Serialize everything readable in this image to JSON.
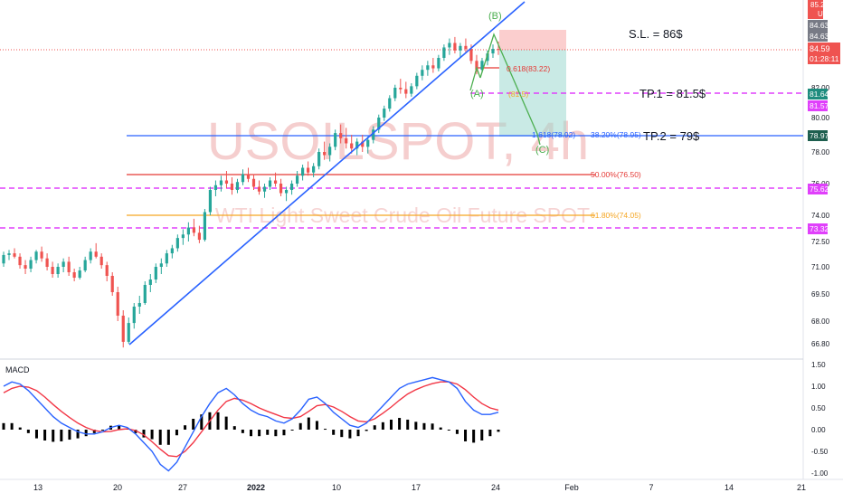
{
  "watermark": {
    "symbol": "USOILSPOT, 4h",
    "description": "WTI Light Sweet Crude Oil Future SPOT"
  },
  "currency": "USD",
  "annotations": {
    "stop_loss": "S.L. = 86$",
    "tp1": "TP.1 = 81.5$",
    "tp2": "TP.2 = 79$",
    "wave_a": "(A)",
    "wave_b": "(B)",
    "wave_c": "(C)",
    "fib_618_small": "0.618(83.22)",
    "fib_618_ext": "1.618(78.92)",
    "fib_382": "38.20%(78.95)",
    "fib_500": "50.00%(76.50)",
    "fib_618": "61.80%(74.05)",
    "fib_a_level": "(81.5)"
  },
  "price_badges": {
    "top1": "85.24",
    "top2": "84.63",
    "top3": "84.63",
    "last": "84.59",
    "countdown": "01:28:11",
    "tp1_a": "81.64",
    "tp1_b": "81.57",
    "tp2": "78.97",
    "lvl1": "75.62",
    "lvl2": "73.32"
  },
  "colors": {
    "up": "#26a69a",
    "down": "#ef5350",
    "trend": "#2962ff",
    "magenta": "#e040fb",
    "red_line": "#e53935",
    "orange_line": "#f5a623",
    "macd": "#2962ff",
    "signal": "#f23645",
    "hist": "#000000"
  },
  "chart_data": {
    "type": "candlestick",
    "title": "USOILSPOT, 4h",
    "y_axis_ticks": [
      66.8,
      68.0,
      69.5,
      71.0,
      72.5,
      74.0,
      76.0,
      78.0,
      80.0,
      82.0
    ],
    "y_axis_tick_labels": [
      "66.80",
      "68.00",
      "69.50",
      "71.00",
      "72.50",
      "74.00",
      "76.00",
      "78.00",
      "80.00",
      "82.00"
    ],
    "x_axis_labels": [
      "13",
      "20",
      "27",
      "2022",
      "10",
      "17",
      "24",
      "Feb",
      "7",
      "14",
      "21"
    ],
    "levels": {
      "stop_loss": 86,
      "tp1": 81.5,
      "tp2": 79,
      "fib_382": 78.95,
      "fib_500": 76.5,
      "fib_618": 74.05,
      "magenta_1": 81.5,
      "magenta_2": 75.62,
      "magenta_3": 73.32
    },
    "ohlc": [
      [
        71.2,
        71.9,
        71.0,
        71.7
      ],
      [
        71.7,
        72.0,
        71.4,
        71.8
      ],
      [
        71.8,
        72.1,
        71.5,
        71.6
      ],
      [
        71.6,
        71.8,
        70.9,
        71.1
      ],
      [
        71.1,
        71.4,
        70.6,
        70.9
      ],
      [
        70.9,
        71.6,
        70.7,
        71.4
      ],
      [
        71.4,
        72.0,
        71.2,
        71.9
      ],
      [
        71.9,
        72.2,
        71.3,
        71.5
      ],
      [
        71.5,
        71.8,
        70.8,
        71.0
      ],
      [
        71.0,
        71.3,
        70.4,
        70.6
      ],
      [
        70.6,
        71.2,
        70.4,
        71.0
      ],
      [
        71.0,
        71.5,
        70.7,
        71.3
      ],
      [
        71.3,
        71.6,
        70.5,
        70.7
      ],
      [
        70.7,
        70.9,
        70.2,
        70.4
      ],
      [
        70.4,
        71.0,
        70.3,
        70.8
      ],
      [
        70.8,
        71.6,
        70.7,
        71.4
      ],
      [
        71.4,
        72.1,
        71.2,
        71.9
      ],
      [
        71.9,
        72.4,
        71.5,
        71.6
      ],
      [
        71.6,
        71.8,
        70.9,
        71.1
      ],
      [
        71.1,
        71.3,
        70.2,
        70.5
      ],
      [
        70.5,
        70.7,
        69.4,
        69.6
      ],
      [
        69.6,
        69.9,
        68.0,
        68.3
      ],
      [
        68.3,
        68.6,
        66.6,
        66.9
      ],
      [
        66.9,
        68.2,
        66.8,
        67.9
      ],
      [
        67.9,
        69.0,
        67.6,
        68.8
      ],
      [
        68.8,
        69.4,
        68.4,
        69.0
      ],
      [
        69.0,
        70.2,
        68.9,
        70.0
      ],
      [
        70.0,
        70.6,
        69.6,
        70.3
      ],
      [
        70.3,
        71.2,
        70.1,
        71.0
      ],
      [
        71.0,
        71.5,
        70.6,
        71.2
      ],
      [
        71.2,
        72.0,
        71.0,
        71.8
      ],
      [
        71.8,
        72.3,
        71.5,
        72.1
      ],
      [
        72.1,
        72.9,
        71.9,
        72.7
      ],
      [
        72.7,
        73.2,
        72.3,
        72.9
      ],
      [
        72.9,
        73.6,
        72.5,
        73.3
      ],
      [
        73.3,
        73.8,
        72.8,
        73.0
      ],
      [
        73.0,
        73.4,
        72.4,
        72.6
      ],
      [
        72.6,
        74.4,
        72.5,
        74.2
      ],
      [
        74.2,
        75.8,
        74.0,
        75.6
      ],
      [
        75.6,
        76.2,
        75.2,
        75.9
      ],
      [
        75.9,
        76.5,
        75.5,
        76.2
      ],
      [
        76.2,
        76.8,
        75.7,
        76.0
      ],
      [
        76.0,
        76.4,
        75.3,
        75.6
      ],
      [
        75.6,
        76.3,
        75.4,
        76.1
      ],
      [
        76.1,
        76.9,
        75.9,
        76.6
      ],
      [
        76.6,
        77.0,
        76.1,
        76.3
      ],
      [
        76.3,
        76.6,
        75.6,
        75.8
      ],
      [
        75.8,
        76.2,
        75.3,
        75.5
      ],
      [
        75.5,
        76.0,
        75.1,
        75.8
      ],
      [
        75.8,
        76.4,
        75.6,
        76.2
      ],
      [
        76.2,
        76.7,
        75.8,
        76.0
      ],
      [
        76.0,
        76.3,
        75.2,
        75.4
      ],
      [
        75.4,
        75.8,
        74.9,
        75.6
      ],
      [
        75.6,
        76.2,
        75.3,
        76.0
      ],
      [
        76.0,
        76.8,
        75.8,
        76.5
      ],
      [
        76.5,
        77.2,
        76.2,
        77.0
      ],
      [
        77.0,
        77.4,
        76.5,
        76.7
      ],
      [
        76.7,
        77.3,
        76.4,
        77.1
      ],
      [
        77.1,
        78.2,
        76.9,
        78.0
      ],
      [
        78.0,
        78.6,
        77.5,
        77.8
      ],
      [
        77.8,
        78.5,
        77.4,
        78.3
      ],
      [
        78.3,
        79.3,
        78.1,
        79.1
      ],
      [
        79.1,
        79.6,
        78.5,
        78.8
      ],
      [
        78.8,
        79.4,
        78.2,
        78.5
      ],
      [
        78.5,
        79.0,
        77.9,
        78.2
      ],
      [
        78.2,
        78.8,
        77.8,
        78.6
      ],
      [
        78.6,
        79.0,
        78.0,
        78.3
      ],
      [
        78.3,
        78.9,
        77.9,
        78.7
      ],
      [
        78.7,
        79.5,
        78.5,
        79.3
      ],
      [
        79.3,
        80.2,
        79.1,
        80.0
      ],
      [
        80.0,
        80.8,
        79.8,
        80.6
      ],
      [
        80.6,
        81.5,
        80.4,
        81.3
      ],
      [
        81.3,
        82.2,
        81.1,
        82.0
      ],
      [
        82.0,
        82.6,
        81.6,
        81.9
      ],
      [
        81.9,
        82.4,
        81.3,
        81.6
      ],
      [
        81.6,
        82.3,
        81.4,
        82.1
      ],
      [
        82.1,
        83.0,
        81.9,
        82.8
      ],
      [
        82.8,
        83.5,
        82.5,
        83.2
      ],
      [
        83.2,
        83.8,
        82.8,
        83.5
      ],
      [
        83.5,
        84.0,
        83.0,
        83.3
      ],
      [
        83.3,
        84.2,
        83.1,
        84.0
      ],
      [
        84.0,
        84.9,
        83.8,
        84.7
      ],
      [
        84.7,
        85.3,
        84.2,
        85.0
      ],
      [
        85.0,
        85.4,
        84.3,
        84.5
      ],
      [
        84.5,
        85.0,
        84.0,
        84.8
      ],
      [
        84.8,
        85.3,
        84.3,
        84.6
      ],
      [
        84.6,
        84.9,
        83.6,
        83.8
      ],
      [
        83.8,
        84.2,
        82.9,
        83.2
      ],
      [
        83.2,
        84.0,
        83.0,
        83.8
      ],
      [
        83.8,
        84.5,
        83.5,
        84.3
      ],
      [
        84.3,
        84.9,
        84.0,
        84.6
      ],
      [
        84.6,
        85.1,
        84.2,
        84.59
      ]
    ]
  },
  "macd": {
    "label": "MACD",
    "ticks": [
      1.5,
      1.0,
      0.5,
      0.0,
      -0.5,
      -1.0
    ],
    "tick_labels": [
      "1.50",
      "1.00",
      "0.50",
      "0.00",
      "-0.50",
      "-1.00"
    ],
    "macd_line": [
      1.0,
      1.1,
      1.05,
      0.9,
      0.7,
      0.5,
      0.3,
      0.15,
      0.05,
      -0.05,
      -0.1,
      -0.1,
      -0.05,
      0.05,
      0.1,
      0.05,
      -0.1,
      -0.3,
      -0.5,
      -0.8,
      -0.95,
      -0.75,
      -0.4,
      -0.05,
      0.3,
      0.6,
      0.85,
      0.95,
      0.8,
      0.6,
      0.45,
      0.35,
      0.3,
      0.2,
      0.15,
      0.25,
      0.45,
      0.7,
      0.75,
      0.6,
      0.4,
      0.25,
      0.1,
      0.05,
      0.15,
      0.35,
      0.55,
      0.75,
      0.95,
      1.05,
      1.1,
      1.15,
      1.2,
      1.15,
      1.1,
      0.95,
      0.65,
      0.45,
      0.35,
      0.35,
      0.4
    ],
    "signal_line": [
      0.85,
      0.95,
      1.0,
      0.98,
      0.9,
      0.75,
      0.58,
      0.42,
      0.28,
      0.15,
      0.05,
      -0.02,
      -0.05,
      -0.04,
      0.0,
      0.02,
      -0.02,
      -0.12,
      -0.28,
      -0.45,
      -0.6,
      -0.62,
      -0.5,
      -0.3,
      -0.05,
      0.2,
      0.45,
      0.65,
      0.72,
      0.68,
      0.6,
      0.5,
      0.42,
      0.35,
      0.28,
      0.26,
      0.3,
      0.42,
      0.55,
      0.58,
      0.52,
      0.42,
      0.3,
      0.2,
      0.18,
      0.25,
      0.38,
      0.52,
      0.68,
      0.82,
      0.92,
      1.0,
      1.06,
      1.1,
      1.1,
      1.05,
      0.92,
      0.75,
      0.6,
      0.5,
      0.45
    ],
    "histogram": [
      0.15,
      0.15,
      0.05,
      -0.08,
      -0.2,
      -0.25,
      -0.28,
      -0.27,
      -0.23,
      -0.2,
      -0.15,
      -0.08,
      0.0,
      0.09,
      0.1,
      0.03,
      -0.08,
      -0.18,
      -0.22,
      -0.35,
      -0.35,
      -0.13,
      0.1,
      0.25,
      0.35,
      0.4,
      0.4,
      0.3,
      0.08,
      -0.08,
      -0.15,
      -0.15,
      -0.12,
      -0.15,
      -0.13,
      -0.01,
      0.15,
      0.28,
      0.2,
      0.02,
      -0.12,
      -0.17,
      -0.2,
      -0.15,
      -0.03,
      0.1,
      0.17,
      0.23,
      0.27,
      0.23,
      0.18,
      0.15,
      0.14,
      0.05,
      0.0,
      -0.1,
      -0.27,
      -0.3,
      -0.25,
      -0.15,
      -0.05
    ]
  }
}
